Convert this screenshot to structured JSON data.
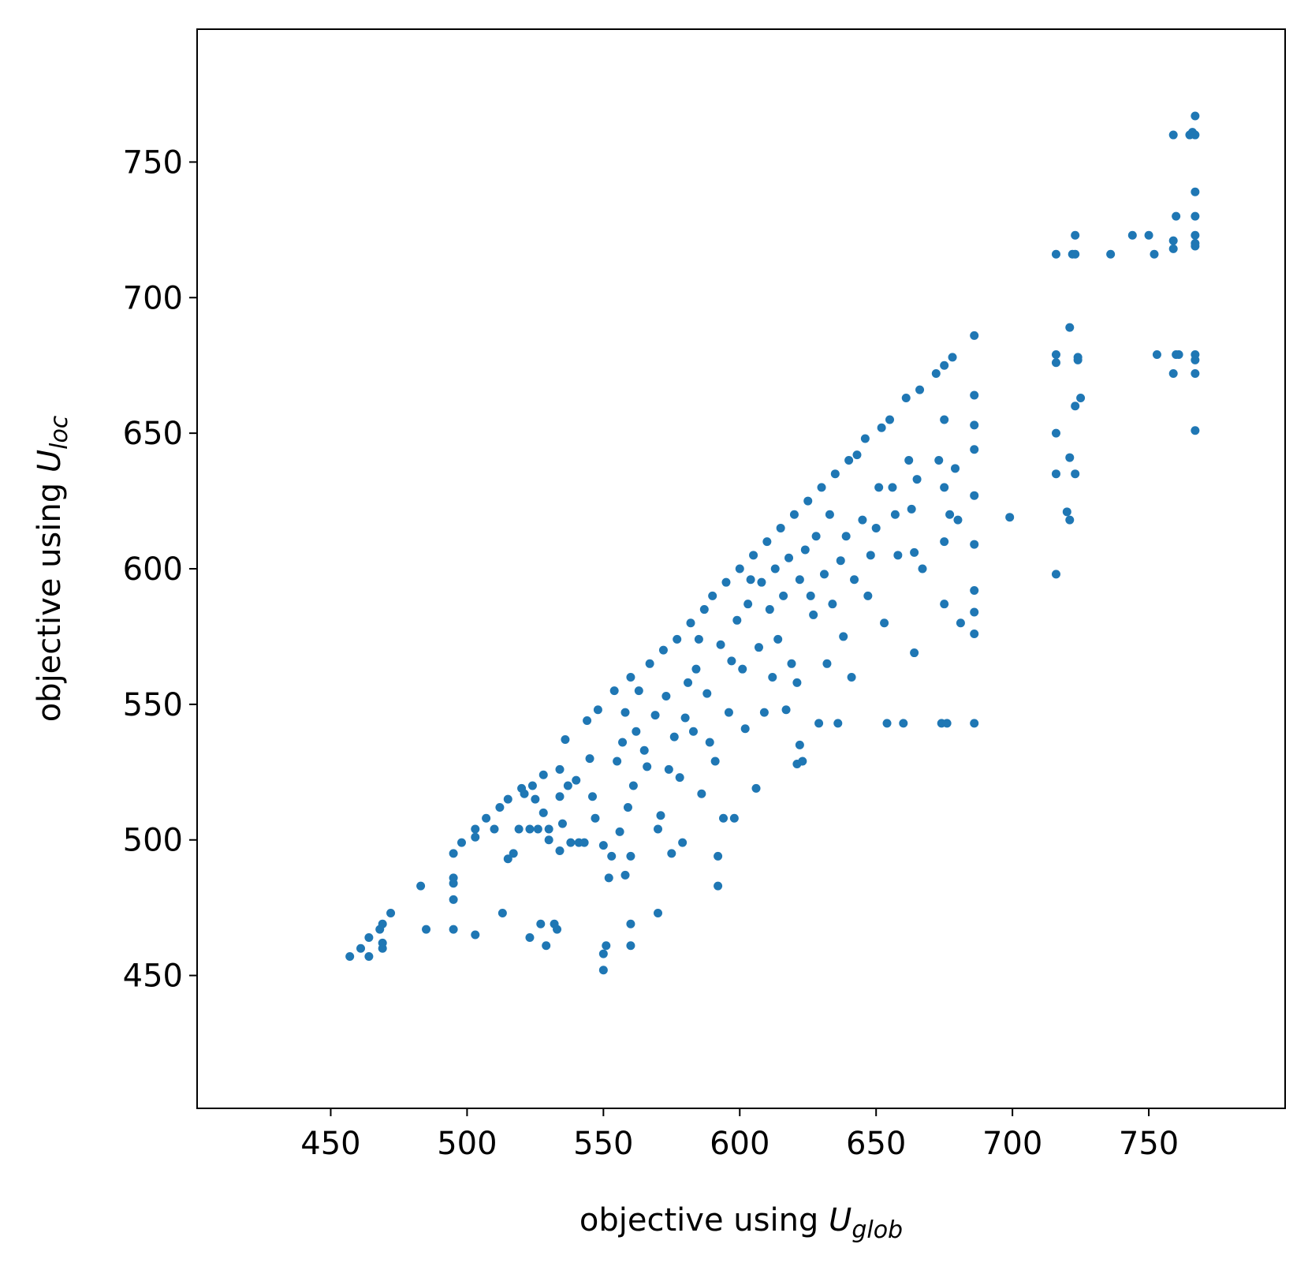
{
  "chart_data": {
    "type": "scatter",
    "color": "#1f77b4",
    "xlabel": [
      "objective using ",
      "U",
      "glob"
    ],
    "ylabel": [
      "objective using ",
      "U",
      "loc"
    ],
    "xlim": [
      401,
      800
    ],
    "ylim": [
      401,
      799
    ],
    "xticks": [
      450,
      500,
      550,
      600,
      650,
      700,
      750
    ],
    "yticks": [
      450,
      500,
      550,
      600,
      650,
      700,
      750
    ],
    "x": [
      457,
      461,
      464,
      464,
      468,
      469,
      469,
      469,
      472,
      483,
      485,
      495,
      495,
      495,
      495,
      495,
      498,
      503,
      503,
      503,
      507,
      510,
      512,
      513,
      515,
      515,
      517,
      519,
      520,
      521,
      523,
      523,
      524,
      525,
      526,
      527,
      528,
      528,
      529,
      530,
      530,
      532,
      533,
      534,
      534,
      534,
      535,
      536,
      537,
      538,
      540,
      541,
      543,
      544,
      545,
      546,
      547,
      548,
      550,
      550,
      550,
      551,
      552,
      553,
      554,
      555,
      556,
      557,
      558,
      558,
      559,
      560,
      560,
      560,
      560,
      561,
      562,
      563,
      565,
      566,
      567,
      569,
      570,
      570,
      571,
      572,
      573,
      574,
      575,
      576,
      577,
      578,
      579,
      580,
      581,
      582,
      583,
      584,
      585,
      586,
      587,
      588,
      589,
      590,
      591,
      592,
      592,
      593,
      594,
      595,
      596,
      597,
      598,
      599,
      600,
      601,
      602,
      603,
      604,
      605,
      606,
      607,
      608,
      609,
      610,
      611,
      612,
      613,
      614,
      615,
      616,
      617,
      618,
      619,
      620,
      621,
      621,
      622,
      622,
      623,
      624,
      625,
      626,
      627,
      628,
      629,
      630,
      631,
      632,
      633,
      634,
      635,
      636,
      637,
      638,
      639,
      640,
      641,
      642,
      643,
      645,
      646,
      647,
      648,
      650,
      651,
      652,
      653,
      654,
      655,
      656,
      657,
      658,
      660,
      661,
      662,
      663,
      664,
      664,
      665,
      666,
      667,
      672,
      673,
      674,
      675,
      675,
      675,
      675,
      675,
      676,
      677,
      678,
      679,
      680,
      681,
      686,
      686,
      686,
      686,
      686,
      686,
      686,
      686,
      686,
      686,
      699,
      716,
      716,
      716,
      716,
      716,
      716,
      720,
      721,
      721,
      721,
      722,
      723,
      723,
      723,
      723,
      724,
      724,
      725,
      736,
      744,
      750,
      752,
      753,
      759,
      759,
      759,
      759,
      760,
      760,
      761,
      765,
      766,
      767,
      767,
      767,
      767,
      767,
      767,
      767,
      767,
      767,
      767,
      767
    ],
    "values": [
      457,
      460,
      457,
      464,
      467,
      460,
      462,
      469,
      473,
      483,
      467,
      495,
      486,
      484,
      478,
      467,
      499,
      465,
      501,
      504,
      508,
      504,
      512,
      473,
      493,
      515,
      495,
      504,
      519,
      517,
      464,
      504,
      520,
      515,
      504,
      469,
      524,
      510,
      461,
      504,
      500,
      469,
      467,
      526,
      496,
      516,
      506,
      537,
      520,
      499,
      522,
      499,
      499,
      544,
      530,
      516,
      508,
      548,
      498,
      458,
      452,
      461,
      486,
      494,
      555,
      529,
      503,
      536,
      487,
      547,
      512,
      560,
      469,
      461,
      494,
      520,
      540,
      555,
      533,
      527,
      565,
      546,
      473,
      504,
      509,
      570,
      553,
      526,
      495,
      538,
      574,
      523,
      499,
      545,
      558,
      580,
      540,
      563,
      574,
      517,
      585,
      554,
      536,
      590,
      529,
      483,
      494,
      572,
      508,
      595,
      547,
      566,
      508,
      581,
      600,
      563,
      541,
      587,
      596,
      605,
      519,
      571,
      595,
      547,
      610,
      585,
      560,
      600,
      574,
      615,
      590,
      548,
      604,
      565,
      620,
      528,
      558,
      535,
      596,
      529,
      607,
      625,
      590,
      583,
      612,
      543,
      630,
      598,
      565,
      620,
      587,
      635,
      543,
      603,
      575,
      612,
      640,
      560,
      596,
      642,
      618,
      648,
      590,
      605,
      615,
      630,
      652,
      580,
      543,
      655,
      630,
      620,
      605,
      543,
      663,
      640,
      622,
      569,
      606,
      633,
      666,
      600,
      672,
      640,
      543,
      675,
      655,
      630,
      610,
      587,
      543,
      620,
      678,
      637,
      618,
      580,
      686,
      664,
      653,
      644,
      627,
      609,
      592,
      584,
      576,
      543,
      619,
      716,
      679,
      676,
      650,
      635,
      598,
      621,
      689,
      618,
      641,
      716,
      723,
      716,
      660,
      635,
      678,
      677,
      663,
      716,
      723,
      723,
      716,
      679,
      760,
      721,
      718,
      672,
      730,
      679,
      679,
      760,
      761,
      767,
      760,
      739,
      730,
      723,
      720,
      719,
      679,
      677,
      672,
      651
    ]
  }
}
